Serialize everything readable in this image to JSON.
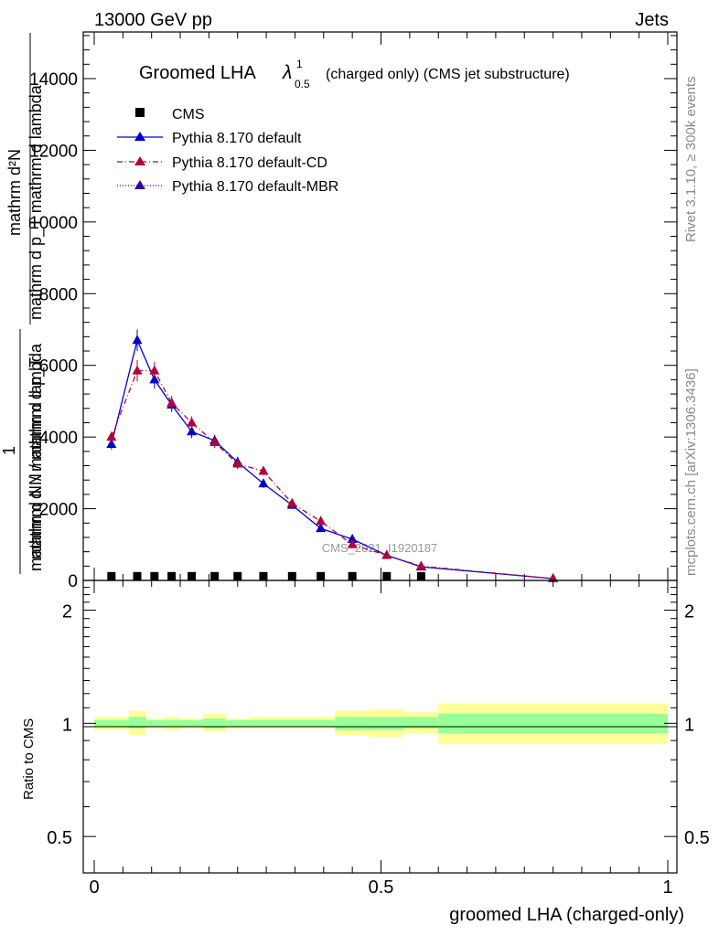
{
  "header": {
    "left": "13000 GeV pp",
    "right": "Jets"
  },
  "side_labels": {
    "rivet": "Rivet 3.1.10, ≥ 300k events",
    "mcplots": "mcplots.cern.ch [arXiv:1306.3436]"
  },
  "watermark": "CMS_2021_I1920187",
  "chart_data": [
    {
      "type": "line",
      "title_main": "Groomed LHA",
      "title_lambda": "λ",
      "title_sup": "1",
      "title_sub": "0.5",
      "title_rest": "(charged only) (CMS jet substructure)",
      "xlabel": "groomed LHA (charged-only)",
      "ylabel": "1 / mathrm d N / mathrm d p_T mathrm d N / mathrm d lambda — mathrm d²N / mathrm d p_T mathrm d lambda",
      "ylabel_lines": [
        "mathrm d²N",
        "mathrm d p_T mathrm d lambda",
        "1",
        "mathrm d N / mathrm d p_T",
        "mathrm d N / mathrm d lambda"
      ],
      "xlim": [
        0,
        1
      ],
      "ylim": [
        0,
        15300
      ],
      "y_ticks": [
        0,
        2000,
        4000,
        6000,
        8000,
        10000,
        12000,
        14000
      ],
      "y_tick_labels": [
        "0",
        "2000",
        "4000",
        "6000",
        "8000",
        "10000",
        "12000",
        "14000"
      ],
      "legend_position": "top-left",
      "series": [
        {
          "name": "CMS",
          "marker": "square",
          "color": "#000000",
          "x": [
            0.03,
            0.075,
            0.105,
            0.135,
            0.17,
            0.21,
            0.25,
            0.295,
            0.345,
            0.395,
            0.45,
            0.51,
            0.57
          ],
          "y": [
            5,
            5,
            5,
            5,
            5,
            5,
            5,
            5,
            5,
            5,
            5,
            5,
            5
          ]
        },
        {
          "name": "Pythia 8.170 default",
          "marker": "triangle",
          "line": "solid",
          "color": "#0000cc",
          "x": [
            0.03,
            0.075,
            0.105,
            0.135,
            0.17,
            0.21,
            0.25,
            0.295,
            0.345,
            0.395,
            0.45,
            0.51,
            0.57,
            0.8
          ],
          "y": [
            3800,
            6700,
            5600,
            4900,
            4150,
            3900,
            3300,
            2700,
            2100,
            1450,
            1150,
            700,
            380,
            50
          ],
          "err": [
            150,
            300,
            250,
            200,
            180,
            160,
            150,
            120,
            100,
            80,
            70,
            50,
            40,
            20
          ]
        },
        {
          "name": "Pythia 8.170 default-CD",
          "marker": "triangle",
          "line": "dashdot",
          "color": "#b3003a",
          "x": [
            0.03,
            0.075,
            0.105,
            0.135,
            0.17,
            0.21,
            0.25,
            0.295,
            0.345,
            0.395,
            0.45,
            0.51,
            0.57,
            0.8
          ],
          "y": [
            4000,
            5850,
            5850,
            4950,
            4400,
            3850,
            3250,
            3050,
            2150,
            1650,
            1000,
            700,
            400,
            50
          ],
          "err": [
            150,
            300,
            250,
            200,
            180,
            160,
            150,
            120,
            100,
            80,
            70,
            50,
            40,
            20
          ]
        },
        {
          "name": "Pythia 8.170 default-MBR",
          "marker": "triangle",
          "line": "dotted",
          "color": "#3300aa",
          "x": [],
          "y": []
        }
      ]
    },
    {
      "type": "area",
      "ylabel": "Ratio to CMS",
      "xlim": [
        0,
        1
      ],
      "ylim": [
        0.4,
        2.4
      ],
      "y_scale": "log",
      "y_ticks": [
        0.5,
        1,
        2
      ],
      "y_tick_labels": [
        "0.5",
        "1",
        "2"
      ],
      "x_ticks": [
        0,
        0.5,
        1
      ],
      "x_tick_labels": [
        "0",
        "0.5",
        "1"
      ],
      "colors": {
        "stat": "#99ff99",
        "total": "#ffff99"
      },
      "bands": [
        {
          "x0": 0.0,
          "x1": 0.06,
          "stat": [
            0.98,
            1.02
          ],
          "total": [
            0.96,
            1.04
          ]
        },
        {
          "x0": 0.06,
          "x1": 0.09,
          "stat": [
            0.97,
            1.04
          ],
          "total": [
            0.93,
            1.08
          ]
        },
        {
          "x0": 0.09,
          "x1": 0.12,
          "stat": [
            0.98,
            1.02
          ],
          "total": [
            0.97,
            1.03
          ]
        },
        {
          "x0": 0.12,
          "x1": 0.15,
          "stat": [
            0.98,
            1.02
          ],
          "total": [
            0.96,
            1.04
          ]
        },
        {
          "x0": 0.15,
          "x1": 0.19,
          "stat": [
            0.98,
            1.02
          ],
          "total": [
            0.97,
            1.03
          ]
        },
        {
          "x0": 0.19,
          "x1": 0.23,
          "stat": [
            0.97,
            1.03
          ],
          "total": [
            0.95,
            1.06
          ]
        },
        {
          "x0": 0.23,
          "x1": 0.27,
          "stat": [
            0.98,
            1.02
          ],
          "total": [
            0.97,
            1.03
          ]
        },
        {
          "x0": 0.27,
          "x1": 0.32,
          "stat": [
            0.98,
            1.02
          ],
          "total": [
            0.97,
            1.04
          ]
        },
        {
          "x0": 0.32,
          "x1": 0.37,
          "stat": [
            0.98,
            1.02
          ],
          "total": [
            0.97,
            1.04
          ]
        },
        {
          "x0": 0.37,
          "x1": 0.42,
          "stat": [
            0.98,
            1.02
          ],
          "total": [
            0.97,
            1.04
          ]
        },
        {
          "x0": 0.42,
          "x1": 0.48,
          "stat": [
            0.96,
            1.04
          ],
          "total": [
            0.93,
            1.08
          ]
        },
        {
          "x0": 0.48,
          "x1": 0.54,
          "stat": [
            0.96,
            1.04
          ],
          "total": [
            0.92,
            1.09
          ]
        },
        {
          "x0": 0.54,
          "x1": 0.6,
          "stat": [
            0.97,
            1.04
          ],
          "total": [
            0.94,
            1.07
          ]
        },
        {
          "x0": 0.6,
          "x1": 1.0,
          "stat": [
            0.94,
            1.06
          ],
          "total": [
            0.88,
            1.13
          ]
        }
      ]
    }
  ]
}
